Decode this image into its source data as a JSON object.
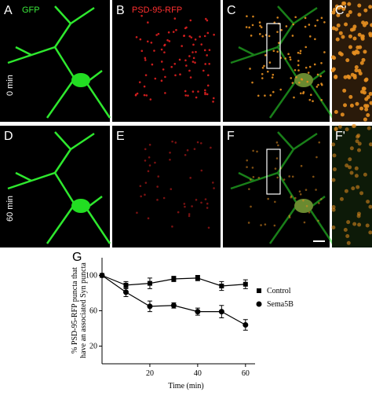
{
  "panels": {
    "labels": [
      "A",
      "B",
      "C",
      "C'",
      "D",
      "E",
      "F",
      "F'",
      "G"
    ],
    "channel_labels": [
      "GFP",
      "PSD-95-RFP"
    ],
    "row_labels": [
      "0 min",
      "60 min"
    ]
  },
  "chart_data": {
    "type": "line",
    "y_label_lines": [
      "% PSD-95-RFP puncta that",
      "have an associated Syn puncta"
    ],
    "x_label": "Time (min)",
    "x": [
      0,
      10,
      20,
      30,
      40,
      50,
      60
    ],
    "series": [
      {
        "name": "Control",
        "color": "#000000",
        "marker": "square",
        "values": [
          100,
          89,
          91,
          96,
          97,
          88,
          90
        ],
        "errors": [
          2,
          4,
          6,
          3,
          3,
          5,
          5
        ]
      },
      {
        "name": "Sema5B",
        "color": "#000000",
        "marker": "circle",
        "values": [
          100,
          81,
          65,
          66,
          59,
          59,
          44
        ],
        "errors": [
          2,
          5,
          6,
          3,
          4,
          7,
          6
        ]
      }
    ],
    "xlim": [
      0,
      64
    ],
    "xticks": [
      20,
      40,
      60
    ],
    "ylim": [
      0,
      120
    ],
    "yticks": [
      20,
      60,
      100
    ]
  }
}
